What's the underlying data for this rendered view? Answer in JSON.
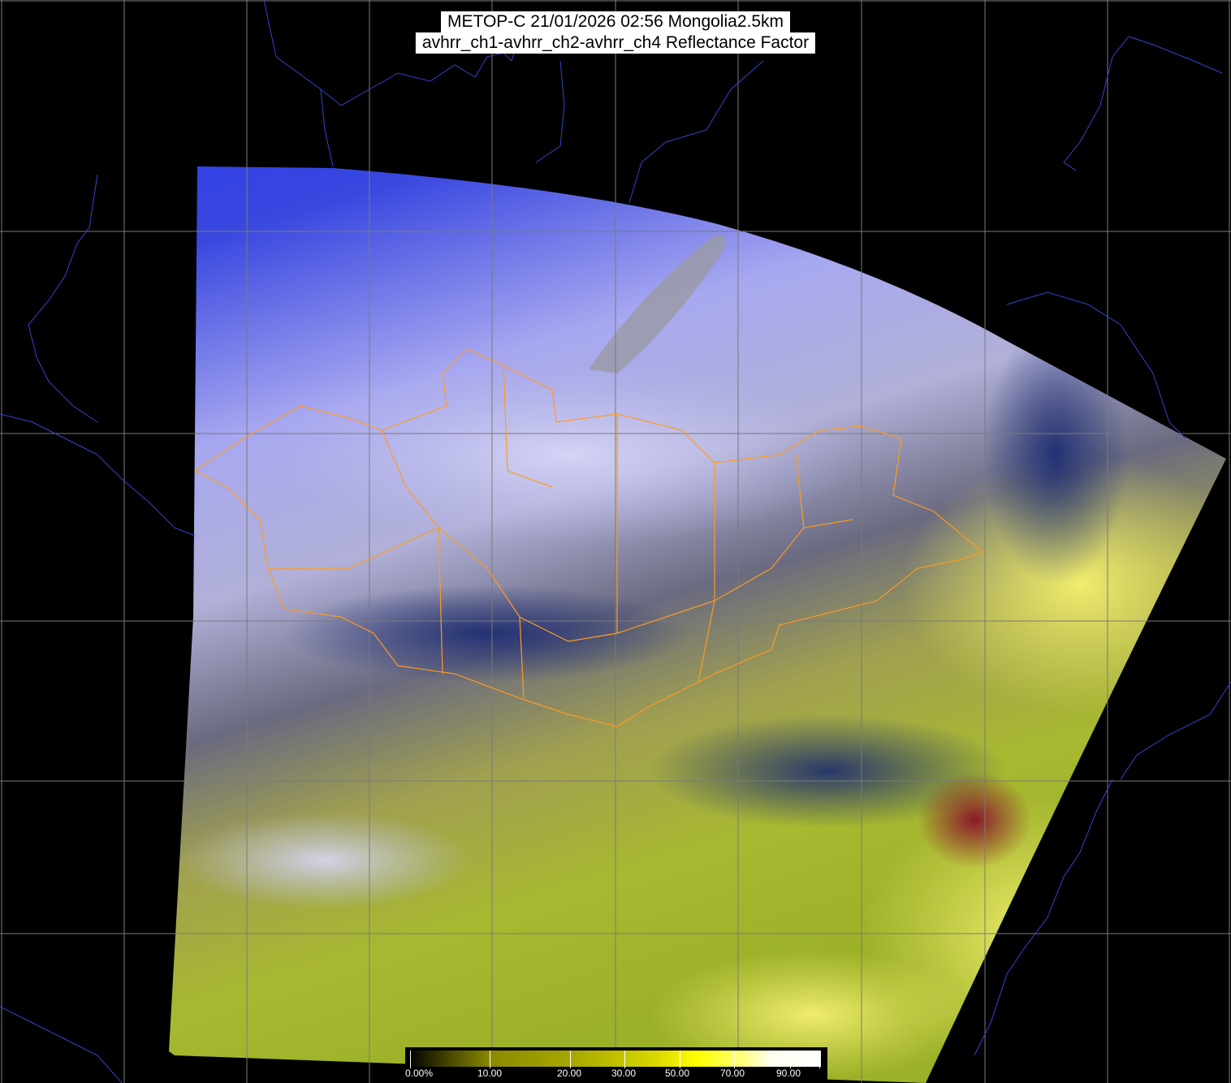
{
  "title": {
    "line1": "METOP-C 21/01/2026 02:56 Mongolia2.5km",
    "line2": "avhrr_ch1-avhrr_ch2-avhrr_ch4 Reflectance Factor"
  },
  "colorbar": {
    "labels": [
      "0.00%",
      "10.00",
      "20.00",
      "30.00",
      "50.00",
      "70.00",
      "90.00"
    ],
    "colors": [
      "#000000",
      "#8a8a00",
      "#d8d800",
      "#ffff00",
      "#ffffff"
    ]
  },
  "colors": {
    "background": "#000000",
    "grid": "#7a7a7a",
    "coastline": "#3344cc",
    "border": "#ff9a20"
  }
}
